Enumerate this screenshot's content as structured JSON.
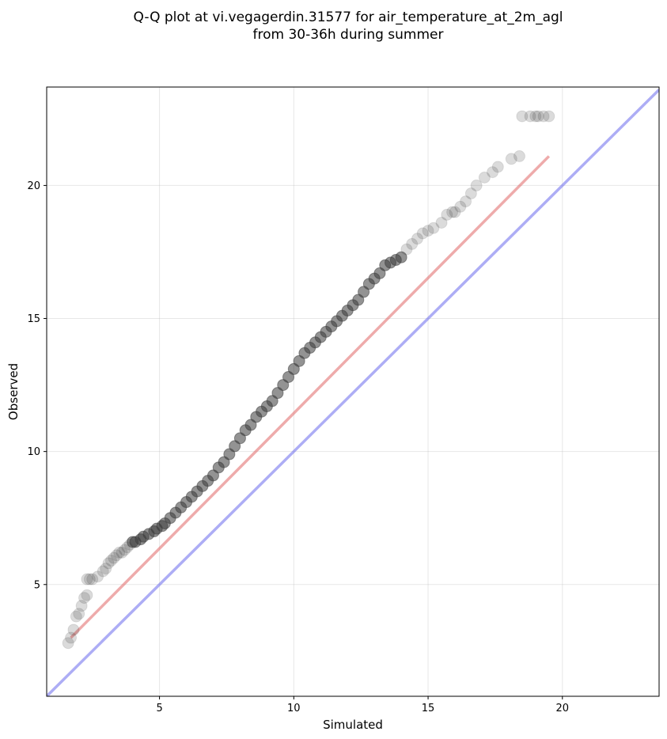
{
  "chart_data": {
    "type": "scatter",
    "title": [
      "Q-Q plot at vi.vegagerdin.31577 for air_temperature_at_2m_agl",
      "from 30-36h during summer"
    ],
    "xlabel": "Simulated",
    "ylabel": "Observed",
    "xlim": [
      0.8,
      23.6
    ],
    "ylim": [
      0.8,
      23.7
    ],
    "xticks": [
      5,
      10,
      15,
      20
    ],
    "yticks": [
      5,
      10,
      15,
      20
    ],
    "grid": true,
    "colors": {
      "points": "#3a3a3a",
      "fit_line": "#e06666",
      "identity_line": "#7777ee"
    },
    "identity_line": {
      "x": [
        0.8,
        23.6
      ],
      "y": [
        0.8,
        23.6
      ]
    },
    "fit_line": {
      "x": [
        1.7,
        19.5
      ],
      "y": [
        3.0,
        21.1
      ]
    },
    "points": {
      "x": [
        1.6,
        1.7,
        1.8,
        1.9,
        2.0,
        2.1,
        2.2,
        2.3,
        2.3,
        2.4,
        2.5,
        2.7,
        2.9,
        3.0,
        3.1,
        3.2,
        3.3,
        3.4,
        3.5,
        3.6,
        3.7,
        3.8,
        3.9,
        4.0,
        4.1,
        4.3,
        4.4,
        4.6,
        4.8,
        4.9,
        5.1,
        5.2,
        5.4,
        5.6,
        5.8,
        6.0,
        6.2,
        6.4,
        6.6,
        6.8,
        7.0,
        7.2,
        7.4,
        7.6,
        7.8,
        8.0,
        8.2,
        8.4,
        8.6,
        8.8,
        9.0,
        9.2,
        9.4,
        9.6,
        9.8,
        10.0,
        10.2,
        10.4,
        10.6,
        10.8,
        11.0,
        11.2,
        11.4,
        11.6,
        11.8,
        12.0,
        12.2,
        12.4,
        12.6,
        12.8,
        13.0,
        13.2,
        13.4,
        13.6,
        13.8,
        14.0,
        14.2,
        14.4,
        14.6,
        14.8,
        15.0,
        15.2,
        15.5,
        15.7,
        15.9,
        16.0,
        16.2,
        16.4,
        16.6,
        16.8,
        17.1,
        17.4,
        17.6,
        18.1,
        18.4,
        18.5,
        18.8,
        19.0,
        19.1,
        19.3,
        19.5
      ],
      "y": [
        2.8,
        3.0,
        3.3,
        3.8,
        3.9,
        4.2,
        4.5,
        4.6,
        5.2,
        5.2,
        5.2,
        5.3,
        5.5,
        5.6,
        5.8,
        5.9,
        6.0,
        6.1,
        6.2,
        6.2,
        6.3,
        6.4,
        6.5,
        6.6,
        6.6,
        6.7,
        6.8,
        6.9,
        7.0,
        7.1,
        7.2,
        7.3,
        7.5,
        7.7,
        7.9,
        8.1,
        8.3,
        8.5,
        8.7,
        8.9,
        9.1,
        9.4,
        9.6,
        9.9,
        10.2,
        10.5,
        10.8,
        11.0,
        11.3,
        11.5,
        11.7,
        11.9,
        12.2,
        12.5,
        12.8,
        13.1,
        13.4,
        13.7,
        13.9,
        14.1,
        14.3,
        14.5,
        14.7,
        14.9,
        15.1,
        15.3,
        15.5,
        15.7,
        16.0,
        16.3,
        16.5,
        16.7,
        17.0,
        17.1,
        17.2,
        17.3,
        17.6,
        17.8,
        18.0,
        18.2,
        18.3,
        18.4,
        18.6,
        18.9,
        19.0,
        19.0,
        19.2,
        19.4,
        19.7,
        20.0,
        20.3,
        20.5,
        20.7,
        21.0,
        21.1,
        22.6,
        22.6,
        22.6,
        22.6,
        22.6,
        22.6
      ]
    }
  }
}
